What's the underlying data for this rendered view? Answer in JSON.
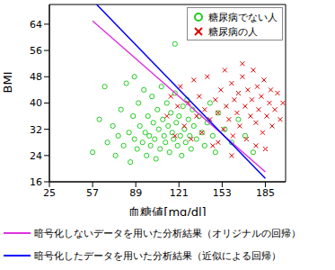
{
  "chart_data": {
    "type": "scatter",
    "xlabel": "血糖値[mg/dl]",
    "ylabel": "BMI",
    "xlim": [
      25,
      200
    ],
    "xticks": [
      25,
      57,
      89,
      121,
      153,
      185
    ],
    "ylim": [
      16,
      70
    ],
    "yticks": [
      16,
      24,
      32,
      40,
      48,
      56,
      64
    ],
    "legend": "upper right",
    "series": [
      {
        "name": "糖尿病でない人",
        "type": "scatter",
        "marker": "o",
        "color": "#22cc22",
        "x": [
          57,
          62,
          66,
          68,
          72,
          74,
          76,
          78,
          80,
          82,
          84,
          85,
          87,
          88,
          90,
          91,
          92,
          94,
          95,
          96,
          97,
          98,
          99,
          100,
          101,
          102,
          103,
          104,
          105,
          106,
          107,
          108,
          109,
          110,
          111,
          112,
          113,
          114,
          115,
          116,
          117,
          118,
          119,
          120,
          121,
          122,
          123,
          124,
          125,
          126,
          127,
          128,
          129,
          130,
          131,
          132,
          134,
          136,
          138,
          140,
          142,
          144,
          146,
          148,
          150,
          155,
          160,
          165,
          170,
          176,
          118,
          88
        ],
        "values": [
          25,
          35,
          45,
          28,
          33,
          24,
          30,
          38,
          27,
          46,
          31,
          22,
          36,
          29,
          26,
          40,
          33,
          28,
          44,
          31,
          24,
          36,
          30,
          27,
          42,
          34,
          29,
          23,
          38,
          32,
          26,
          45,
          35,
          30,
          28,
          40,
          33,
          25,
          37,
          31,
          29,
          43,
          34,
          27,
          36,
          30,
          24,
          39,
          32,
          28,
          41,
          35,
          30,
          26,
          38,
          33,
          29,
          36,
          31,
          27,
          34,
          40,
          30,
          25,
          37,
          32,
          28,
          35,
          30,
          25,
          58,
          48
        ]
      },
      {
        "name": "糖尿病の人",
        "type": "scatter",
        "marker": "x",
        "color": "#e00000",
        "x": [
          112,
          115,
          118,
          120,
          122,
          125,
          128,
          130,
          132,
          134,
          136,
          138,
          140,
          142,
          144,
          146,
          148,
          150,
          152,
          154,
          155,
          156,
          158,
          160,
          161,
          162,
          164,
          165,
          166,
          168,
          170,
          171,
          172,
          174,
          175,
          176,
          178,
          179,
          180,
          182,
          183,
          184,
          186,
          188,
          189,
          190,
          192,
          194,
          196,
          198,
          185,
          178,
          168,
          150,
          160
        ],
        "values": [
          36,
          42,
          30,
          39,
          45,
          33,
          40,
          29,
          47,
          36,
          42,
          31,
          38,
          48,
          35,
          27,
          41,
          37,
          44,
          32,
          50,
          39,
          35,
          46,
          30,
          41,
          37,
          43,
          33,
          48,
          39,
          29,
          44,
          36,
          41,
          50,
          34,
          45,
          38,
          42,
          31,
          47,
          36,
          40,
          44,
          33,
          38,
          43,
          35,
          40,
          26,
          27,
          52,
          28,
          24
        ]
      },
      {
        "name": "暗号化しないデータを用いた分析結果（オリジナルの回帰）",
        "type": "line",
        "color": "#dd33dd",
        "x": [
          57,
          185
        ],
        "values": [
          65,
          19
        ]
      },
      {
        "name": "暗号化したデータを用いた分析結果（近似による回帰）",
        "type": "line",
        "color": "#0000ff",
        "x": [
          60,
          185
        ],
        "values": [
          70,
          17
        ]
      }
    ]
  }
}
